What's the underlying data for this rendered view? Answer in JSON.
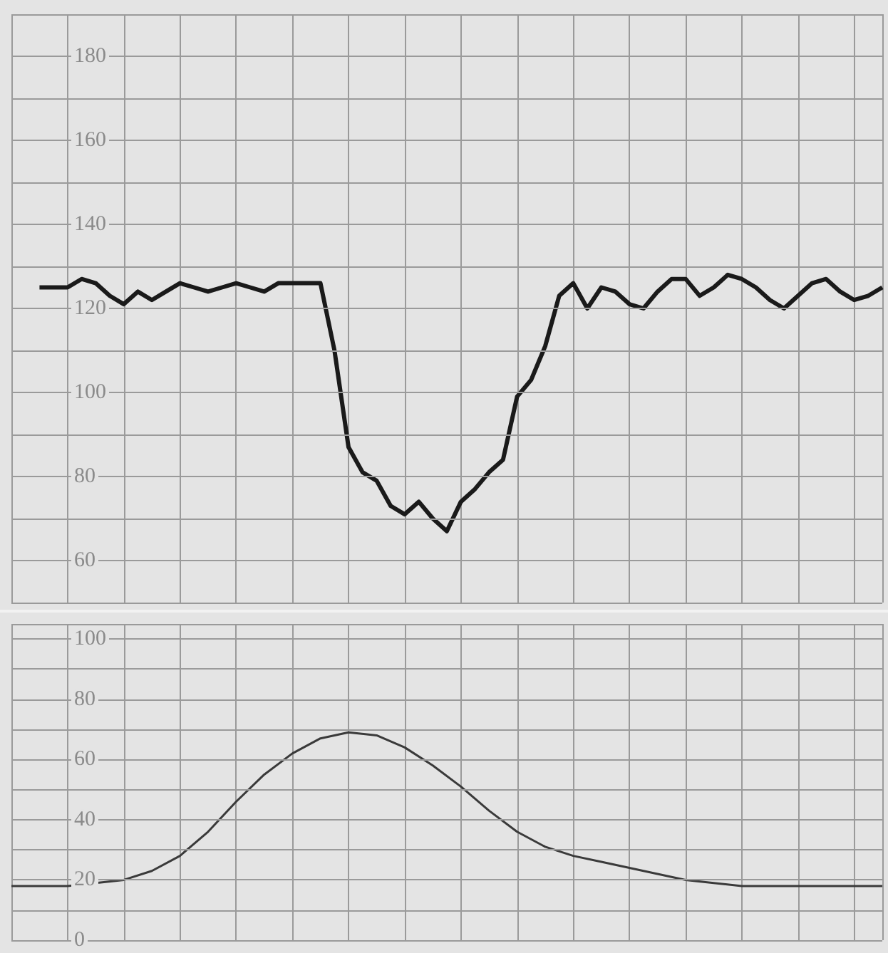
{
  "chart_data": [
    {
      "type": "line",
      "categories": [
        null,
        null,
        null,
        null,
        null,
        null,
        null,
        null,
        null,
        null,
        null,
        null,
        null,
        null,
        null,
        null,
        null,
        null,
        null,
        null,
        null,
        null,
        null,
        null,
        null,
        null,
        null,
        null,
        null,
        null,
        null,
        null,
        null,
        null,
        null,
        null,
        null,
        null,
        null,
        null,
        null,
        null,
        null,
        null,
        null,
        null,
        null,
        null,
        null,
        null,
        null,
        null,
        null,
        null,
        null,
        null,
        null,
        null,
        null,
        null,
        null,
        null,
        null
      ],
      "series": [
        {
          "color": "#1a1a1a",
          "values": [
            null,
            null,
            125,
            125,
            125,
            127,
            126,
            123,
            121,
            124,
            122,
            124,
            126,
            125,
            124,
            125,
            126,
            125,
            124,
            126,
            126,
            126,
            126,
            110,
            87,
            81,
            79,
            73,
            71,
            74,
            70,
            67,
            74,
            77,
            81,
            84,
            99,
            103,
            111,
            123,
            126,
            120,
            125,
            124,
            121,
            120,
            124,
            127,
            127,
            123,
            125,
            128,
            127,
            125,
            122,
            120,
            123,
            126,
            127,
            124,
            122,
            123,
            125
          ]
        }
      ],
      "ylim": [
        50,
        190
      ],
      "yticks": [
        {
          "value": 50,
          "label": null
        },
        60,
        {
          "value": 70,
          "label": null
        },
        80,
        {
          "value": 90,
          "label": null
        },
        100,
        {
          "value": 110,
          "label": null
        },
        120,
        {
          "value": 130,
          "label": null
        },
        140,
        {
          "value": 150,
          "label": null
        },
        160,
        {
          "value": 170,
          "label": null
        },
        180,
        {
          "value": 190,
          "label": null
        }
      ],
      "tick_labels": "y",
      "grid": true,
      "marker": "none",
      "line_style": "solid"
    },
    {
      "type": "line",
      "categories": [
        null,
        null,
        null,
        null,
        null,
        null,
        null,
        null,
        null,
        null,
        null,
        null,
        null,
        null,
        null,
        null,
        null,
        null,
        null,
        null,
        null,
        null,
        null,
        null,
        null,
        null,
        null,
        null,
        null,
        null,
        null,
        null
      ],
      "series": [
        {
          "color": "#3a3a3a",
          "values": [
            18,
            18,
            18,
            19,
            20,
            23,
            28,
            36,
            46,
            55,
            62,
            67,
            69,
            68,
            64,
            58,
            51,
            43,
            36,
            31,
            28,
            26,
            24,
            22,
            20,
            19,
            18,
            18,
            18,
            18,
            18,
            18
          ]
        }
      ],
      "ylim": [
        0,
        105
      ],
      "yticks": [
        0,
        {
          "value": 10,
          "label": null
        },
        20,
        {
          "value": 30,
          "label": null
        },
        40,
        {
          "value": 50,
          "label": null
        },
        60,
        {
          "value": 70,
          "label": null
        },
        80,
        {
          "value": 90,
          "label": null
        },
        100
      ],
      "tick_labels": "y",
      "grid": true,
      "marker": "none",
      "line_style": "solid"
    }
  ]
}
